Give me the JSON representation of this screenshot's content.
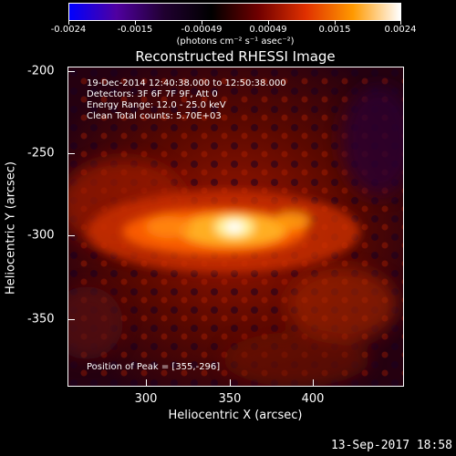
{
  "colorbar": {
    "ticks": [
      "-0.0024",
      "-0.0015",
      "-0.00049",
      "0.00049",
      "0.0015",
      "0.0024"
    ],
    "units": "(photons cm⁻² s⁻¹ asec⁻²)",
    "colors": [
      "#0000ff",
      "#5000a0",
      "#200030",
      "#000000",
      "#700000",
      "#e03000",
      "#ff9900",
      "#ffffff"
    ]
  },
  "title": "Reconstructed RHESSI Image",
  "info": {
    "line1": "19-Dec-2014 12:40:38.000 to 12:50:38.000",
    "line2": "Detectors: 3F 6F 7F 9F, Att 0",
    "line3": "Energy Range: 12.0 - 25.0 keV",
    "line4": "Clean    Total counts: 5.70E+03"
  },
  "peak_text": "Position of Peak = [355,-296]",
  "axes": {
    "xlabel": "Heliocentric X (arcsec)",
    "ylabel": "Heliocentric Y (arcsec)",
    "xticks": [
      "300",
      "350",
      "400"
    ],
    "yticks": [
      "-200",
      "-250",
      "-300",
      "-350"
    ]
  },
  "timestamp": "13-Sep-2017 18:58"
}
